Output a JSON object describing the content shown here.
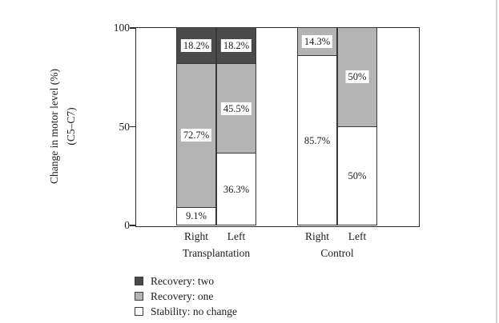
{
  "figure": {
    "ylabel_line1": "Change in motor level (%)",
    "ylabel_line2": "(C5–C7)"
  },
  "chart_data": {
    "type": "bar",
    "stacked": true,
    "title": "",
    "ylabel": "Change in motor level (%) (C5–C7)",
    "xlabel": "",
    "ylim": [
      0,
      100
    ],
    "yticks": [
      0,
      50,
      100
    ],
    "grid": false,
    "legend_position": "bottom-left",
    "colors": {
      "Stability: no change": "#ffffff",
      "Recovery: one": "#b4b4b4",
      "Recovery: two": "#4a4a4a"
    },
    "series": [
      {
        "name": "Stability: no change",
        "values": [
          9.1,
          36.3,
          85.7,
          50
        ]
      },
      {
        "name": "Recovery: one",
        "values": [
          72.7,
          45.5,
          14.3,
          50
        ]
      },
      {
        "name": "Recovery: two",
        "values": [
          18.2,
          18.2,
          0,
          0
        ]
      }
    ],
    "categories": [
      "Right",
      "Left",
      "Right",
      "Left"
    ],
    "groups": [
      {
        "label": "Transplantation",
        "bars": [
          {
            "category": "Right",
            "segments": [
              {
                "series": "Stability: no change",
                "value": 9.1,
                "label": "9.1%"
              },
              {
                "series": "Recovery: one",
                "value": 72.7,
                "label": "72.7%"
              },
              {
                "series": "Recovery: two",
                "value": 18.2,
                "label": "18.2%"
              }
            ]
          },
          {
            "category": "Left",
            "segments": [
              {
                "series": "Stability: no change",
                "value": 36.3,
                "label": "36.3%"
              },
              {
                "series": "Recovery: one",
                "value": 45.5,
                "label": "45.5%"
              },
              {
                "series": "Recovery: two",
                "value": 18.2,
                "label": "18.2%"
              }
            ]
          }
        ]
      },
      {
        "label": "Control",
        "bars": [
          {
            "category": "Right",
            "segments": [
              {
                "series": "Stability: no change",
                "value": 85.7,
                "label": "85.7%"
              },
              {
                "series": "Recovery: one",
                "value": 14.3,
                "label": "14.3%"
              }
            ]
          },
          {
            "category": "Left",
            "segments": [
              {
                "series": "Stability: no change",
                "value": 50,
                "label": "50%"
              },
              {
                "series": "Recovery: one",
                "value": 50,
                "label": "50%"
              }
            ]
          }
        ]
      }
    ],
    "legend": [
      {
        "label": "Recovery: two",
        "color": "#4a4a4a"
      },
      {
        "label": "Recovery: one",
        "color": "#b4b4b4"
      },
      {
        "label": "Stability: no change",
        "color": "#ffffff"
      }
    ]
  }
}
